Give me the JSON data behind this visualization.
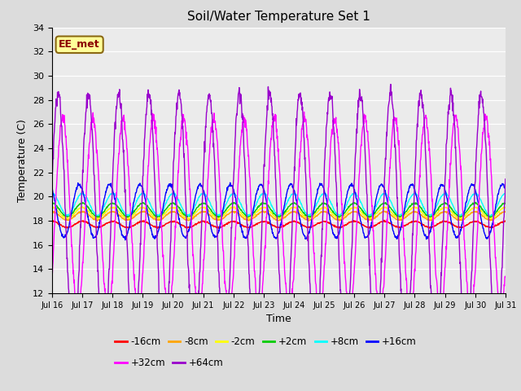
{
  "title": "Soil/Water Temperature Set 1",
  "xlabel": "Time",
  "ylabel": "Temperature (C)",
  "ylim": [
    12,
    34
  ],
  "yticks": [
    12,
    14,
    16,
    18,
    20,
    22,
    24,
    26,
    28,
    30,
    32,
    34
  ],
  "annotation_text": "EE_met",
  "annotation_color": "#8B0000",
  "annotation_bg": "#FFFF99",
  "annotation_edge": "#8B6914",
  "colors": {
    "-16cm": "#FF0000",
    "-8cm": "#FFA500",
    "-2cm": "#FFFF00",
    "+2cm": "#00CC00",
    "+8cm": "#00FFFF",
    "+16cm": "#0000FF",
    "+32cm": "#FF00FF",
    "+64cm": "#9900CC"
  },
  "background_color": "#DCDCDC",
  "plot_bg": "#EBEBEB",
  "n_days": 15,
  "start_day": 16,
  "base_temps": {
    "-16cm": 17.7,
    "-8cm": 18.4,
    "-2cm": 18.65,
    "+2cm": 18.9,
    "+8cm": 19.35,
    "+16cm": 18.8,
    "+32cm": 18.5,
    "+64cm": 18.0
  },
  "amplitudes": {
    "-16cm": 0.25,
    "-8cm": 0.35,
    "-2cm": 0.45,
    "+2cm": 0.55,
    "+8cm": 0.9,
    "+16cm": 2.2,
    "+32cm": 8.0,
    "+64cm": 10.5
  },
  "phase_shifts": {
    "-16cm": 0.5,
    "-8cm": 0.5,
    "-2cm": 0.5,
    "+2cm": 0.5,
    "+8cm": 0.5,
    "+16cm": 0.7,
    "+32cm": -0.2,
    "+64cm": 0.1
  },
  "linewidth": 1.0,
  "legend_rows": [
    [
      "-16cm",
      "-8cm",
      "-2cm",
      "+2cm",
      "+8cm",
      "+16cm"
    ],
    [
      "+32cm",
      "+64cm"
    ]
  ]
}
